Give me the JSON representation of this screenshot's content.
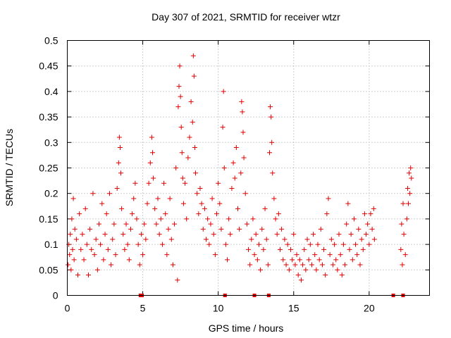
{
  "chart_data": {
    "type": "scatter",
    "title": "Day 307 of 2021, SRMTID for receiver wtzr",
    "xlabel": "GPS time / hours",
    "ylabel": "SRMTID / TECUs",
    "xlim": [
      0,
      24
    ],
    "ylim": [
      0,
      0.5
    ],
    "xticks": [
      0,
      5,
      10,
      15,
      20
    ],
    "xtick_labels": [
      "0",
      "5",
      "10",
      "15",
      "20"
    ],
    "yticks": [
      0,
      0.05,
      0.1,
      0.15,
      0.2,
      0.25,
      0.3,
      0.35,
      0.4,
      0.45,
      0.5
    ],
    "ytick_labels": [
      "0",
      "0.05",
      "0.1",
      "0.15",
      "0.2",
      "0.25",
      "0.3",
      "0.35",
      "0.4",
      "0.45",
      "0.5"
    ],
    "grid": true,
    "marker": "+",
    "color": "#e00000",
    "series": [
      {
        "name": "SRMTID",
        "points": [
          [
            0.05,
            0.06
          ],
          [
            0.1,
            0.1
          ],
          [
            0.15,
            0.08
          ],
          [
            0.2,
            0.12
          ],
          [
            0.25,
            0.05
          ],
          [
            0.3,
            0.15
          ],
          [
            0.35,
            0.09
          ],
          [
            0.4,
            0.19
          ],
          [
            0.45,
            0.07
          ],
          [
            0.5,
            0.13
          ],
          [
            0.6,
            0.11
          ],
          [
            0.7,
            0.04
          ],
          [
            0.8,
            0.16
          ],
          [
            0.9,
            0.09
          ],
          [
            1.0,
            0.12
          ],
          [
            1.1,
            0.07
          ],
          [
            1.2,
            0.17
          ],
          [
            1.3,
            0.1
          ],
          [
            1.4,
            0.04
          ],
          [
            1.5,
            0.13
          ],
          [
            1.6,
            0.09
          ],
          [
            1.7,
            0.2
          ],
          [
            1.8,
            0.08
          ],
          [
            1.9,
            0.11
          ],
          [
            2.0,
            0.05
          ],
          [
            2.1,
            0.14
          ],
          [
            2.2,
            0.1
          ],
          [
            2.3,
            0.18
          ],
          [
            2.4,
            0.07
          ],
          [
            2.5,
            0.12
          ],
          [
            2.6,
            0.16
          ],
          [
            2.7,
            0.09
          ],
          [
            2.8,
            0.2
          ],
          [
            2.9,
            0.06
          ],
          [
            3.0,
            0.11
          ],
          [
            3.1,
            0.14
          ],
          [
            3.2,
            0.08
          ],
          [
            3.3,
            0.21
          ],
          [
            3.4,
            0.26
          ],
          [
            3.45,
            0.31
          ],
          [
            3.5,
            0.29
          ],
          [
            3.55,
            0.24
          ],
          [
            3.6,
            0.17
          ],
          [
            3.7,
            0.12
          ],
          [
            3.8,
            0.09
          ],
          [
            3.9,
            0.14
          ],
          [
            4.0,
            0.1
          ],
          [
            4.1,
            0.07
          ],
          [
            4.2,
            0.13
          ],
          [
            4.3,
            0.16
          ],
          [
            4.4,
            0.19
          ],
          [
            4.5,
            0.22
          ],
          [
            4.6,
            0.15
          ],
          [
            4.7,
            0.1
          ],
          [
            4.8,
            0.06
          ],
          [
            4.9,
            0.12
          ],
          [
            5.0,
            0.08
          ],
          [
            5.1,
            0.14
          ],
          [
            5.2,
            0.11
          ],
          [
            5.3,
            0.18
          ],
          [
            5.4,
            0.22
          ],
          [
            5.5,
            0.26
          ],
          [
            5.6,
            0.31
          ],
          [
            5.65,
            0.28
          ],
          [
            5.7,
            0.23
          ],
          [
            5.8,
            0.17
          ],
          [
            5.9,
            0.14
          ],
          [
            6.0,
            0.19
          ],
          [
            6.1,
            0.12
          ],
          [
            6.2,
            0.15
          ],
          [
            6.3,
            0.1
          ],
          [
            6.4,
            0.22
          ],
          [
            6.5,
            0.16
          ],
          [
            6.6,
            0.08
          ],
          [
            6.7,
            0.13
          ],
          [
            6.8,
            0.19
          ],
          [
            6.9,
            0.11
          ],
          [
            7.0,
            0.06
          ],
          [
            7.1,
            0.14
          ],
          [
            7.2,
            0.25
          ],
          [
            7.3,
            0.03
          ],
          [
            7.35,
            0.37
          ],
          [
            7.4,
            0.41
          ],
          [
            7.45,
            0.45
          ],
          [
            7.5,
            0.39
          ],
          [
            7.55,
            0.33
          ],
          [
            7.6,
            0.28
          ],
          [
            7.65,
            0.23
          ],
          [
            7.7,
            0.18
          ],
          [
            7.8,
            0.22
          ],
          [
            7.9,
            0.15
          ],
          [
            8.0,
            0.27
          ],
          [
            8.1,
            0.31
          ],
          [
            8.2,
            0.38
          ],
          [
            8.3,
            0.34
          ],
          [
            8.35,
            0.47
          ],
          [
            8.4,
            0.43
          ],
          [
            8.45,
            0.29
          ],
          [
            8.5,
            0.24
          ],
          [
            8.6,
            0.2
          ],
          [
            8.7,
            0.16
          ],
          [
            8.8,
            0.21
          ],
          [
            8.9,
            0.18
          ],
          [
            9.0,
            0.13
          ],
          [
            9.1,
            0.17
          ],
          [
            9.2,
            0.11
          ],
          [
            9.3,
            0.15
          ],
          [
            9.4,
            0.1
          ],
          [
            9.5,
            0.14
          ],
          [
            9.6,
            0.19
          ],
          [
            9.7,
            0.12
          ],
          [
            9.8,
            0.08
          ],
          [
            9.9,
            0.16
          ],
          [
            10.0,
            0.22
          ],
          [
            10.1,
            0.18
          ],
          [
            10.2,
            0.13
          ],
          [
            10.3,
            0.33
          ],
          [
            10.35,
            0.4
          ],
          [
            10.4,
            0.25
          ],
          [
            10.5,
            0.1
          ],
          [
            10.6,
            0.07
          ],
          [
            10.7,
            0.15
          ],
          [
            10.8,
            0.12
          ],
          [
            10.9,
            0.21
          ],
          [
            11.0,
            0.26
          ],
          [
            11.1,
            0.23
          ],
          [
            11.2,
            0.29
          ],
          [
            11.3,
            0.17
          ],
          [
            11.4,
            0.13
          ],
          [
            11.5,
            0.24
          ],
          [
            11.55,
            0.38
          ],
          [
            11.6,
            0.36
          ],
          [
            11.65,
            0.32
          ],
          [
            11.7,
            0.27
          ],
          [
            11.8,
            0.2
          ],
          [
            11.9,
            0.14
          ],
          [
            12.0,
            0.09
          ],
          [
            12.1,
            0.06
          ],
          [
            12.2,
            0.11
          ],
          [
            12.3,
            0.15
          ],
          [
            12.4,
            0.08
          ],
          [
            12.5,
            0.12
          ],
          [
            12.6,
            0.07
          ],
          [
            12.7,
            0.1
          ],
          [
            12.8,
            0.05
          ],
          [
            12.9,
            0.13
          ],
          [
            13.0,
            0.09
          ],
          [
            13.1,
            0.17
          ],
          [
            13.2,
            0.11
          ],
          [
            13.3,
            0.06
          ],
          [
            13.4,
            0.28
          ],
          [
            13.45,
            0.37
          ],
          [
            13.5,
            0.35
          ],
          [
            13.55,
            0.3
          ],
          [
            13.6,
            0.24
          ],
          [
            13.7,
            0.19
          ],
          [
            13.8,
            0.15
          ],
          [
            13.9,
            0.12
          ],
          [
            14.0,
            0.16
          ],
          [
            14.1,
            0.09
          ],
          [
            14.2,
            0.13
          ],
          [
            14.3,
            0.07
          ],
          [
            14.4,
            0.11
          ],
          [
            14.5,
            0.06
          ],
          [
            14.6,
            0.1
          ],
          [
            14.7,
            0.05
          ],
          [
            14.8,
            0.09
          ],
          [
            14.9,
            0.07
          ],
          [
            15.0,
            0.12
          ],
          [
            15.1,
            0.06
          ],
          [
            15.2,
            0.08
          ],
          [
            15.3,
            0.04
          ],
          [
            15.4,
            0.07
          ],
          [
            15.5,
            0.03
          ],
          [
            15.6,
            0.06
          ],
          [
            15.7,
            0.09
          ],
          [
            15.8,
            0.05
          ],
          [
            15.9,
            0.11
          ],
          [
            16.0,
            0.07
          ],
          [
            16.1,
            0.1
          ],
          [
            16.2,
            0.06
          ],
          [
            16.3,
            0.12
          ],
          [
            16.4,
            0.08
          ],
          [
            16.5,
            0.05
          ],
          [
            16.6,
            0.1
          ],
          [
            16.7,
            0.07
          ],
          [
            16.8,
            0.13
          ],
          [
            16.9,
            0.06
          ],
          [
            17.0,
            0.09
          ],
          [
            17.1,
            0.04
          ],
          [
            17.2,
            0.16
          ],
          [
            17.3,
            0.19
          ],
          [
            17.4,
            0.08
          ],
          [
            17.5,
            0.11
          ],
          [
            17.6,
            0.06
          ],
          [
            17.7,
            0.1
          ],
          [
            17.8,
            0.07
          ],
          [
            17.9,
            0.05
          ],
          [
            18.0,
            0.12
          ],
          [
            18.1,
            0.08
          ],
          [
            18.2,
            0.04
          ],
          [
            18.3,
            0.1
          ],
          [
            18.4,
            0.06
          ],
          [
            18.5,
            0.14
          ],
          [
            18.6,
            0.18
          ],
          [
            18.7,
            0.09
          ],
          [
            18.8,
            0.12
          ],
          [
            18.9,
            0.07
          ],
          [
            19.0,
            0.15
          ],
          [
            19.1,
            0.1
          ],
          [
            19.2,
            0.08
          ],
          [
            19.3,
            0.13
          ],
          [
            19.4,
            0.06
          ],
          [
            19.5,
            0.11
          ],
          [
            19.6,
            0.09
          ],
          [
            19.7,
            0.16
          ],
          [
            19.8,
            0.12
          ],
          [
            19.9,
            0.14
          ],
          [
            20.0,
            0.1
          ],
          [
            20.1,
            0.16
          ],
          [
            20.2,
            0.13
          ],
          [
            20.3,
            0.17
          ],
          [
            20.35,
            0.11
          ],
          [
            22.1,
            0.09
          ],
          [
            22.15,
            0.14
          ],
          [
            22.2,
            0.06
          ],
          [
            22.25,
            0.18
          ],
          [
            22.3,
            0.12
          ],
          [
            22.4,
            0.08
          ],
          [
            22.5,
            0.15
          ],
          [
            22.55,
            0.21
          ],
          [
            22.6,
            0.18
          ],
          [
            22.65,
            0.24
          ],
          [
            22.7,
            0.2
          ],
          [
            22.75,
            0.25
          ],
          [
            22.8,
            0.23
          ]
        ]
      }
    ],
    "zero_markers": [
      4.85,
      4.95,
      10.45,
      12.4,
      13.35,
      21.6,
      22.25
    ]
  }
}
